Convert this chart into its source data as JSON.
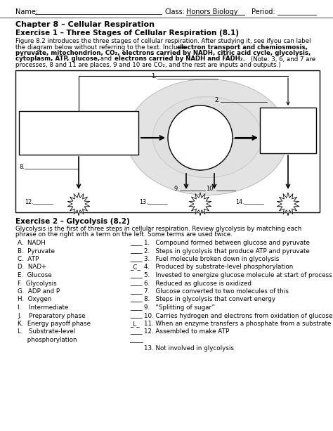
{
  "chapter": "Chapter 8 – Cellular Respiration",
  "exercise1_title": "Exercise 1 – Three Stages of Cellular Respiration (8.1)",
  "exercise2_title": "Exercise 2 – Glycolysis (8.2)",
  "left_terms": [
    "A.  NADH",
    "B.  Pyruvate",
    "C.  ATP",
    "D.  NAD+",
    "E.  Glucose",
    "F.  Glycolysis",
    "G.  ADP and P",
    "H.  Oxygen",
    "I.    Intermediate",
    "J.    Preparatory phase",
    "K.  Energy payoff phase",
    "L.   Substrate-level",
    "     phosphorylation"
  ],
  "answers": [
    "____",
    "____",
    "____",
    "_C_",
    "____",
    "____",
    "____",
    "____",
    "____",
    "____",
    "_L_",
    "____",
    ""
  ],
  "right_items": [
    "1.   Compound formed between glucose and pyruvate",
    "2.   Steps in glycolysis that produce ATP and pyruvate",
    "3.   Fuel molecule broken down in glycolysis",
    "4.   Produced by substrate-level phosphorylation",
    "5.   Invested to energize glucose molecule at start of process",
    "6.   Reduced as glucose is oxidized",
    "7.   Glucose converted to two molecules of this",
    "8.   Steps in glycolysis that convert energy",
    "9.   “Splitting of sugar”",
    "10. Carries hydrogen and electrons from oxidation of glucose",
    "11. When an enzyme transfers a phosphate from a substrate to ADP",
    "12. Assembled to make ATP",
    "",
    "13. Not involved in glycolysis"
  ],
  "bg_color": "#ffffff"
}
